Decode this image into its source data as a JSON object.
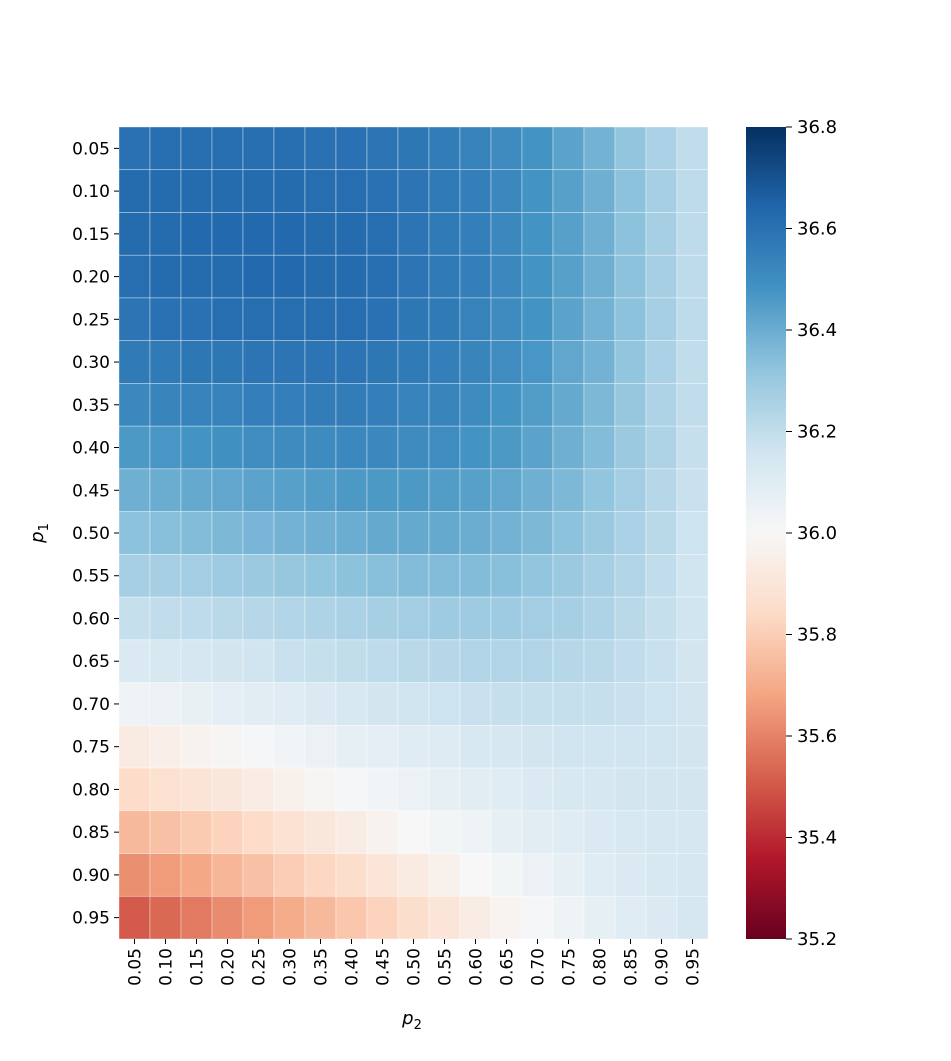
{
  "chart_data": {
    "type": "heatmap",
    "title": "",
    "xlabel": {
      "base": "p",
      "sub": "2"
    },
    "ylabel": {
      "base": "p",
      "sub": "1"
    },
    "x_categories": [
      "0.05",
      "0.10",
      "0.15",
      "0.20",
      "0.25",
      "0.30",
      "0.35",
      "0.40",
      "0.45",
      "0.50",
      "0.55",
      "0.60",
      "0.65",
      "0.70",
      "0.75",
      "0.80",
      "0.85",
      "0.90",
      "0.95"
    ],
    "y_categories": [
      "0.05",
      "0.10",
      "0.15",
      "0.20",
      "0.25",
      "0.30",
      "0.35",
      "0.40",
      "0.45",
      "0.50",
      "0.55",
      "0.60",
      "0.65",
      "0.70",
      "0.75",
      "0.80",
      "0.85",
      "0.90",
      "0.95"
    ],
    "values": [
      [
        36.6,
        36.61,
        36.61,
        36.61,
        36.61,
        36.61,
        36.6,
        36.6,
        36.59,
        36.58,
        36.56,
        36.54,
        36.51,
        36.48,
        36.43,
        36.38,
        36.32,
        36.26,
        36.2
      ],
      [
        36.62,
        36.62,
        36.62,
        36.62,
        36.62,
        36.62,
        36.61,
        36.61,
        36.6,
        36.59,
        36.57,
        36.55,
        36.52,
        36.48,
        36.44,
        36.39,
        36.33,
        36.27,
        36.21
      ],
      [
        36.62,
        36.62,
        36.63,
        36.63,
        36.63,
        36.63,
        36.62,
        36.62,
        36.61,
        36.59,
        36.57,
        36.55,
        36.52,
        36.48,
        36.44,
        36.39,
        36.33,
        36.27,
        36.21
      ],
      [
        36.61,
        36.62,
        36.62,
        36.62,
        36.63,
        36.63,
        36.62,
        36.62,
        36.61,
        36.59,
        36.57,
        36.55,
        36.52,
        36.48,
        36.44,
        36.39,
        36.33,
        36.27,
        36.21
      ],
      [
        36.59,
        36.6,
        36.6,
        36.61,
        36.61,
        36.61,
        36.61,
        36.61,
        36.6,
        36.58,
        36.57,
        36.54,
        36.51,
        36.48,
        36.43,
        36.38,
        36.33,
        36.27,
        36.21
      ],
      [
        36.57,
        36.57,
        36.58,
        36.58,
        36.59,
        36.59,
        36.59,
        36.59,
        36.58,
        36.57,
        36.55,
        36.53,
        36.5,
        36.47,
        36.42,
        36.38,
        36.32,
        36.26,
        36.2
      ],
      [
        36.52,
        36.53,
        36.54,
        36.54,
        36.55,
        36.55,
        36.56,
        36.56,
        36.55,
        36.54,
        36.53,
        36.51,
        36.48,
        36.45,
        36.41,
        36.36,
        36.31,
        36.25,
        36.2
      ],
      [
        36.46,
        36.47,
        36.48,
        36.49,
        36.5,
        36.51,
        36.51,
        36.52,
        36.52,
        36.51,
        36.5,
        36.48,
        36.46,
        36.43,
        36.39,
        36.35,
        36.3,
        36.25,
        36.19
      ],
      [
        36.39,
        36.4,
        36.41,
        36.42,
        36.43,
        36.44,
        36.45,
        36.46,
        36.46,
        36.46,
        36.45,
        36.44,
        36.42,
        36.39,
        36.36,
        36.32,
        36.28,
        36.23,
        36.18
      ],
      [
        36.33,
        36.34,
        36.35,
        36.36,
        36.37,
        36.38,
        36.39,
        36.4,
        36.41,
        36.41,
        36.41,
        36.4,
        36.38,
        36.36,
        36.33,
        36.3,
        36.26,
        36.22,
        36.17
      ],
      [
        36.27,
        36.27,
        36.28,
        36.29,
        36.3,
        36.31,
        36.32,
        36.33,
        36.34,
        36.35,
        36.35,
        36.35,
        36.34,
        36.32,
        36.3,
        36.27,
        36.24,
        36.2,
        36.16
      ],
      [
        36.19,
        36.2,
        36.21,
        36.22,
        36.23,
        36.24,
        36.25,
        36.26,
        36.27,
        36.28,
        36.29,
        36.29,
        36.29,
        36.28,
        36.27,
        36.25,
        36.22,
        36.19,
        36.16
      ],
      [
        36.12,
        36.13,
        36.14,
        36.15,
        36.16,
        36.18,
        36.19,
        36.2,
        36.21,
        36.22,
        36.23,
        36.24,
        36.24,
        36.24,
        36.23,
        36.22,
        36.2,
        36.18,
        36.15
      ],
      [
        36.04,
        36.05,
        36.06,
        36.08,
        36.09,
        36.1,
        36.12,
        36.13,
        36.15,
        36.16,
        36.17,
        36.18,
        36.19,
        36.19,
        36.19,
        36.19,
        36.18,
        36.17,
        36.15
      ],
      [
        35.93,
        35.95,
        35.97,
        35.99,
        36.01,
        36.03,
        36.05,
        36.07,
        36.08,
        36.1,
        36.11,
        36.13,
        36.14,
        36.15,
        36.16,
        36.16,
        36.16,
        36.16,
        36.15
      ],
      [
        35.85,
        35.87,
        35.89,
        35.91,
        35.94,
        35.96,
        35.99,
        36.01,
        36.03,
        36.05,
        36.07,
        36.09,
        36.1,
        36.12,
        36.13,
        36.14,
        36.15,
        36.15,
        36.15
      ],
      [
        35.74,
        35.76,
        35.79,
        35.82,
        35.85,
        35.88,
        35.91,
        35.94,
        35.97,
        36.0,
        36.02,
        36.04,
        36.07,
        36.09,
        36.1,
        36.12,
        36.13,
        36.14,
        36.14
      ],
      [
        35.63,
        35.66,
        35.69,
        35.73,
        35.76,
        35.8,
        35.83,
        35.86,
        35.9,
        35.93,
        35.96,
        36.0,
        36.02,
        36.05,
        36.07,
        36.1,
        36.12,
        36.13,
        36.14
      ],
      [
        35.51,
        35.54,
        35.58,
        35.62,
        35.66,
        35.7,
        35.74,
        35.78,
        35.82,
        35.86,
        35.9,
        35.94,
        35.98,
        36.01,
        36.04,
        36.07,
        36.1,
        36.12,
        36.14
      ]
    ],
    "colormap": "RdBu",
    "vmin": 35.2,
    "vmax": 36.8,
    "colorbar_ticks": [
      "35.2",
      "35.4",
      "35.6",
      "35.8",
      "36.0",
      "36.2",
      "36.4",
      "36.6",
      "36.8"
    ],
    "colorbar_stops": [
      "#67001f",
      "#b2182b",
      "#d6604d",
      "#f4a582",
      "#fddbc7",
      "#f7f7f7",
      "#d1e5f0",
      "#92c5de",
      "#4393c3",
      "#2166ac",
      "#053061"
    ]
  }
}
